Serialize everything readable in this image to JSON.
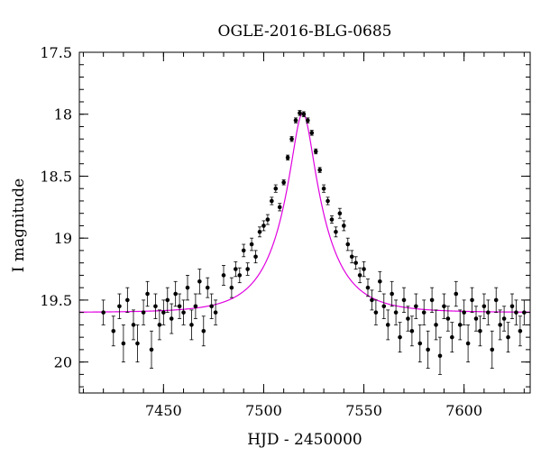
{
  "chart_data": {
    "type": "scatter",
    "title": "OGLE-2016-BLG-0685",
    "xlabel": "HJD - 2450000",
    "ylabel": "I magnitude",
    "xlim": [
      7408,
      7633
    ],
    "ylim": [
      20.25,
      17.5
    ],
    "y_inverted": true,
    "grid": false,
    "x_ticks": [
      7450,
      7500,
      7550,
      7600
    ],
    "x_tick_labels": [
      "7450",
      "7500",
      "7550",
      "7600"
    ],
    "y_ticks": [
      17.5,
      18,
      18.5,
      19,
      19.5,
      20
    ],
    "y_tick_labels": [
      "17.5",
      "18",
      "18.5",
      "19",
      "19.5",
      "20"
    ],
    "series": [
      {
        "kind": "points_with_errorbars",
        "color": "#000000",
        "x": [
          7420,
          7425,
          7428,
          7430,
          7432,
          7435,
          7437,
          7440,
          7442,
          7444,
          7446,
          7448,
          7450,
          7452,
          7454,
          7456,
          7458,
          7460,
          7462,
          7464,
          7466,
          7468,
          7470,
          7472,
          7474,
          7476,
          7480,
          7484,
          7486,
          7488,
          7490,
          7492,
          7494,
          7496,
          7498,
          7500,
          7502,
          7504,
          7506,
          7508,
          7510,
          7512,
          7514,
          7516,
          7518,
          7520,
          7522,
          7524,
          7526,
          7528,
          7530,
          7532,
          7534,
          7536,
          7538,
          7540,
          7542,
          7544,
          7546,
          7548,
          7550,
          7552,
          7554,
          7556,
          7558,
          7560,
          7562,
          7564,
          7566,
          7568,
          7570,
          7572,
          7574,
          7576,
          7578,
          7580,
          7582,
          7584,
          7586,
          7588,
          7590,
          7592,
          7594,
          7596,
          7598,
          7600,
          7602,
          7604,
          7606,
          7608,
          7610,
          7612,
          7614,
          7616,
          7618,
          7620,
          7622,
          7624,
          7626,
          7628,
          7630
        ],
        "y": [
          19.6,
          19.75,
          19.55,
          19.85,
          19.5,
          19.7,
          19.85,
          19.6,
          19.45,
          19.9,
          19.55,
          19.7,
          19.6,
          19.5,
          19.65,
          19.45,
          19.55,
          19.6,
          19.4,
          19.7,
          19.55,
          19.35,
          19.75,
          19.4,
          19.55,
          19.6,
          19.3,
          19.4,
          19.25,
          19.3,
          19.1,
          19.25,
          19.05,
          19.15,
          18.95,
          18.9,
          18.85,
          18.7,
          18.6,
          18.75,
          18.55,
          18.35,
          18.2,
          18.05,
          17.99,
          18.0,
          18.05,
          18.15,
          18.3,
          18.45,
          18.6,
          18.7,
          18.85,
          18.95,
          18.8,
          18.9,
          19.05,
          19.15,
          19.2,
          19.3,
          19.25,
          19.4,
          19.5,
          19.6,
          19.35,
          19.55,
          19.7,
          19.45,
          19.6,
          19.8,
          19.5,
          19.65,
          19.75,
          19.55,
          19.85,
          19.6,
          19.9,
          19.5,
          19.7,
          19.95,
          19.55,
          19.65,
          19.8,
          19.45,
          19.7,
          19.6,
          19.85,
          19.5,
          19.65,
          19.75,
          19.55,
          19.6,
          19.9,
          19.5,
          19.7,
          19.65,
          19.8,
          19.55,
          19.6,
          19.75,
          19.6
        ],
        "yerr": [
          0.1,
          0.12,
          0.1,
          0.15,
          0.1,
          0.12,
          0.15,
          0.1,
          0.1,
          0.15,
          0.1,
          0.12,
          0.1,
          0.1,
          0.12,
          0.1,
          0.1,
          0.1,
          0.1,
          0.12,
          0.1,
          0.1,
          0.12,
          0.08,
          0.1,
          0.1,
          0.08,
          0.08,
          0.06,
          0.06,
          0.05,
          0.05,
          0.05,
          0.05,
          0.04,
          0.04,
          0.04,
          0.03,
          0.03,
          0.03,
          0.02,
          0.02,
          0.02,
          0.02,
          0.02,
          0.02,
          0.02,
          0.02,
          0.02,
          0.02,
          0.03,
          0.03,
          0.03,
          0.04,
          0.04,
          0.04,
          0.05,
          0.05,
          0.05,
          0.06,
          0.06,
          0.07,
          0.08,
          0.1,
          0.08,
          0.1,
          0.12,
          0.1,
          0.1,
          0.12,
          0.1,
          0.1,
          0.12,
          0.1,
          0.15,
          0.1,
          0.15,
          0.1,
          0.12,
          0.15,
          0.1,
          0.1,
          0.12,
          0.1,
          0.12,
          0.1,
          0.15,
          0.1,
          0.1,
          0.12,
          0.1,
          0.1,
          0.15,
          0.1,
          0.12,
          0.1,
          0.12,
          0.1,
          0.1,
          0.12,
          0.1
        ]
      },
      {
        "kind": "model_curve",
        "color": "#e000e0",
        "baseline": 19.6,
        "peak_t": 7519.5,
        "peak_mag": 17.99,
        "tE": 22
      }
    ]
  }
}
